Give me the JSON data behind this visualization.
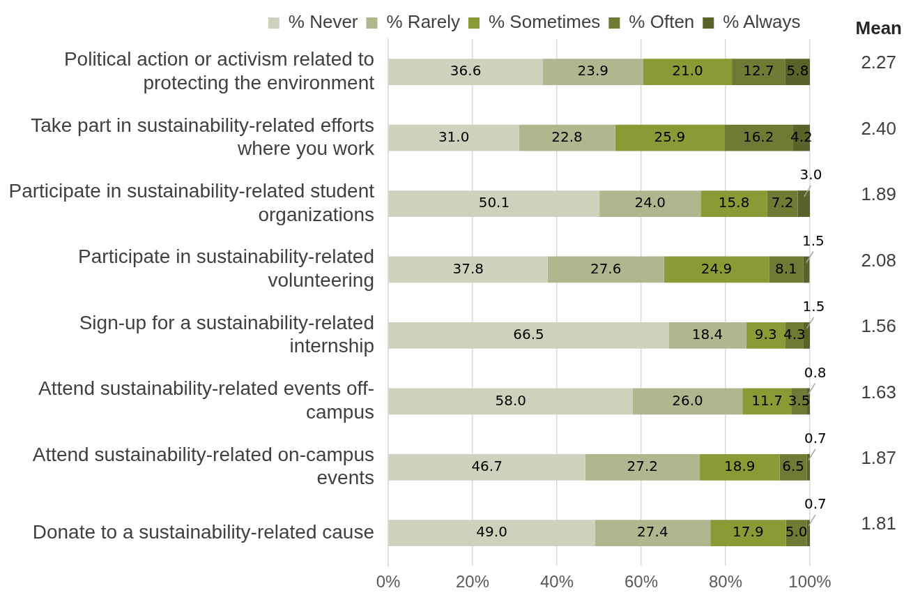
{
  "chart_data": {
    "type": "bar",
    "orientation": "horizontal",
    "stacked": true,
    "categories": [
      "Political action or activism related to protecting the environment",
      "Take part in sustainability-related efforts where you work",
      "Participate in sustainability-related student organizations",
      "Participate in sustainability-related volunteering",
      "Sign-up for a sustainability-related internship",
      "Attend sustainability-related events off-campus",
      "Attend sustainability-related on-campus events",
      "Donate to a sustainability-related cause"
    ],
    "series": [
      {
        "name": "% Never",
        "color": "#cfd1bd",
        "values": [
          36.6,
          31.0,
          50.1,
          37.8,
          66.5,
          58.0,
          46.7,
          49.0
        ],
        "value_labels": [
          "36.6",
          "31.0",
          "50.1",
          "37.8",
          "66.5",
          "58.0",
          "46.7",
          "49.0"
        ]
      },
      {
        "name": "% Rarely",
        "color": "#b0b78f",
        "values": [
          23.9,
          22.8,
          24.0,
          27.6,
          18.4,
          26.0,
          27.2,
          27.4
        ],
        "value_labels": [
          "23.9",
          "22.8",
          "24.0",
          "27.6",
          "18.4",
          "26.0",
          "27.2",
          "27.4"
        ]
      },
      {
        "name": "% Sometimes",
        "color": "#8c9a36",
        "values": [
          21.0,
          25.9,
          15.8,
          24.9,
          9.3,
          11.7,
          18.9,
          17.9
        ],
        "value_labels": [
          "21.0",
          "25.9",
          "15.8",
          "24.9",
          "9.3",
          "11.7",
          "18.9",
          "17.9"
        ]
      },
      {
        "name": "% Often",
        "color": "#6f7b35",
        "values": [
          12.7,
          16.2,
          7.2,
          8.1,
          4.3,
          3.5,
          6.5,
          5.0
        ],
        "value_labels": [
          "12.7",
          "16.2",
          "7.2",
          "8.1",
          "4.3",
          "3.5",
          "6.5",
          "5.0"
        ]
      },
      {
        "name": "% Always",
        "color": "#5a6129",
        "values": [
          5.8,
          4.2,
          3.0,
          1.5,
          1.5,
          0.8,
          0.7,
          0.7
        ],
        "value_labels": [
          "5.8",
          "4.2",
          "3.0",
          "1.5",
          "1.5",
          "0.8",
          "0.7",
          "0.7"
        ]
      }
    ],
    "xlim": [
      0,
      100
    ],
    "xticks": [
      {
        "value": 0,
        "label": "0%"
      },
      {
        "value": 20,
        "label": "20%"
      },
      {
        "value": 40,
        "label": "40%"
      },
      {
        "value": 60,
        "label": "60%"
      },
      {
        "value": 80,
        "label": "80%"
      },
      {
        "value": 100,
        "label": "100%"
      }
    ],
    "grid": "x",
    "legend": "top",
    "annotations": [
      "Mean",
      "2.27",
      "2.40",
      "1.89",
      "2.08",
      "1.56",
      "1.63",
      "1.87",
      "1.81"
    ]
  }
}
